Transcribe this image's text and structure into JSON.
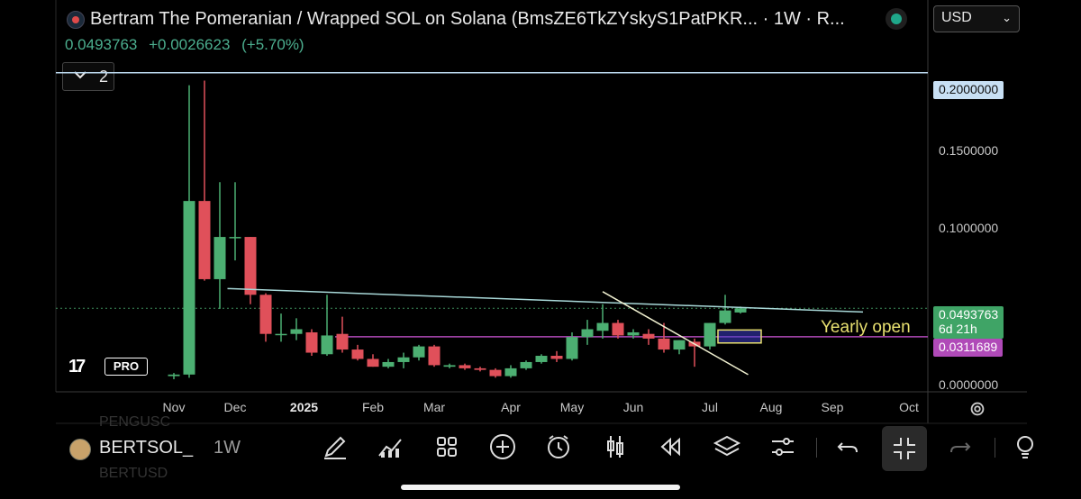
{
  "header": {
    "title": "Bertram The Pomeranian / Wrapped SOL on Solana (BmsZE6TkZYskyS1PatPKR... · 1W · R...",
    "last_price": "0.0493763",
    "change_abs": "+0.0026623",
    "change_pct": "(+5.70%)",
    "currency": "USD",
    "indicator_count": "2"
  },
  "colors": {
    "up": "#4caf72",
    "down": "#e0505a",
    "horizontal_line": "#bcd8ee",
    "trendline": "#a8d8d8",
    "yearly_open_line": "#b04ab8",
    "annotation": "#e8e070",
    "crosshair": "#4caf72"
  },
  "chart_data": {
    "type": "candlestick",
    "timeframe": "1W",
    "ylim": [
      0,
      0.235
    ],
    "y_ticks": [
      "0.2000000",
      "0.1500000",
      "0.1000000",
      "0.0000000"
    ],
    "x_ticks": [
      "Nov",
      "Dec",
      "2025",
      "Feb",
      "Mar",
      "Apr",
      "May",
      "Jun",
      "Jul",
      "Aug",
      "Sep",
      "Oct"
    ],
    "x_tick_bold": "2025",
    "candles": [
      {
        "o": 0.006,
        "h": 0.008,
        "l": 0.004,
        "c": 0.007
      },
      {
        "o": 0.007,
        "h": 0.192,
        "l": 0.005,
        "c": 0.118
      },
      {
        "o": 0.118,
        "h": 0.195,
        "l": 0.067,
        "c": 0.068
      },
      {
        "o": 0.068,
        "h": 0.13,
        "l": 0.049,
        "c": 0.095
      },
      {
        "o": 0.095,
        "h": 0.13,
        "l": 0.08,
        "c": 0.095
      },
      {
        "o": 0.095,
        "h": 0.095,
        "l": 0.052,
        "c": 0.058
      },
      {
        "o": 0.058,
        "h": 0.059,
        "l": 0.028,
        "c": 0.033
      },
      {
        "o": 0.033,
        "h": 0.046,
        "l": 0.028,
        "c": 0.033
      },
      {
        "o": 0.033,
        "h": 0.043,
        "l": 0.029,
        "c": 0.036
      },
      {
        "o": 0.034,
        "h": 0.036,
        "l": 0.019,
        "c": 0.021
      },
      {
        "o": 0.02,
        "h": 0.058,
        "l": 0.019,
        "c": 0.032
      },
      {
        "o": 0.033,
        "h": 0.044,
        "l": 0.021,
        "c": 0.023
      },
      {
        "o": 0.023,
        "h": 0.026,
        "l": 0.016,
        "c": 0.017
      },
      {
        "o": 0.017,
        "h": 0.02,
        "l": 0.012,
        "c": 0.012
      },
      {
        "o": 0.012,
        "h": 0.017,
        "l": 0.011,
        "c": 0.015
      },
      {
        "o": 0.015,
        "h": 0.021,
        "l": 0.011,
        "c": 0.018
      },
      {
        "o": 0.018,
        "h": 0.026,
        "l": 0.016,
        "c": 0.025
      },
      {
        "o": 0.025,
        "h": 0.026,
        "l": 0.012,
        "c": 0.013
      },
      {
        "o": 0.012,
        "h": 0.014,
        "l": 0.011,
        "c": 0.013
      },
      {
        "o": 0.013,
        "h": 0.014,
        "l": 0.01,
        "c": 0.011
      },
      {
        "o": 0.011,
        "h": 0.012,
        "l": 0.009,
        "c": 0.01
      },
      {
        "o": 0.01,
        "h": 0.011,
        "l": 0.005,
        "c": 0.006
      },
      {
        "o": 0.006,
        "h": 0.013,
        "l": 0.005,
        "c": 0.011
      },
      {
        "o": 0.011,
        "h": 0.016,
        "l": 0.01,
        "c": 0.015
      },
      {
        "o": 0.015,
        "h": 0.02,
        "l": 0.014,
        "c": 0.019
      },
      {
        "o": 0.019,
        "h": 0.022,
        "l": 0.015,
        "c": 0.017
      },
      {
        "o": 0.017,
        "h": 0.034,
        "l": 0.016,
        "c": 0.031
      },
      {
        "o": 0.031,
        "h": 0.042,
        "l": 0.026,
        "c": 0.036
      },
      {
        "o": 0.035,
        "h": 0.052,
        "l": 0.03,
        "c": 0.04
      },
      {
        "o": 0.04,
        "h": 0.042,
        "l": 0.03,
        "c": 0.032
      },
      {
        "o": 0.032,
        "h": 0.036,
        "l": 0.03,
        "c": 0.034
      },
      {
        "o": 0.033,
        "h": 0.036,
        "l": 0.026,
        "c": 0.03
      },
      {
        "o": 0.03,
        "h": 0.04,
        "l": 0.021,
        "c": 0.023
      },
      {
        "o": 0.023,
        "h": 0.029,
        "l": 0.02,
        "c": 0.029
      },
      {
        "o": 0.028,
        "h": 0.03,
        "l": 0.012,
        "c": 0.025
      },
      {
        "o": 0.025,
        "h": 0.04,
        "l": 0.023,
        "c": 0.04
      },
      {
        "o": 0.04,
        "h": 0.058,
        "l": 0.039,
        "c": 0.048
      },
      {
        "o": 0.0467,
        "h": 0.0505,
        "l": 0.046,
        "c": 0.0494
      }
    ],
    "lines": [
      {
        "name": "horizontal",
        "value": 0.2,
        "label": "0.2000000"
      },
      {
        "name": "yearly open",
        "value": 0.0311689,
        "label": "0.0311689"
      },
      {
        "name": "trendline",
        "from": {
          "candle": 3.5,
          "value": 0.062
        },
        "to": {
          "candle": 45,
          "value": 0.047
        }
      },
      {
        "name": "downtrend",
        "from": {
          "candle": 28.0,
          "value": 0.06
        },
        "to": {
          "candle": 37.5,
          "value": 0.007
        }
      }
    ],
    "annotation": "Yearly open",
    "last_price_label": "0.0493763",
    "countdown": "6d 21h"
  },
  "toolbar": {
    "symbol": "BERTSOL_",
    "timeframe": "1W",
    "ghost_above": "PENGUSC",
    "ghost_below": "BERTUSD"
  }
}
